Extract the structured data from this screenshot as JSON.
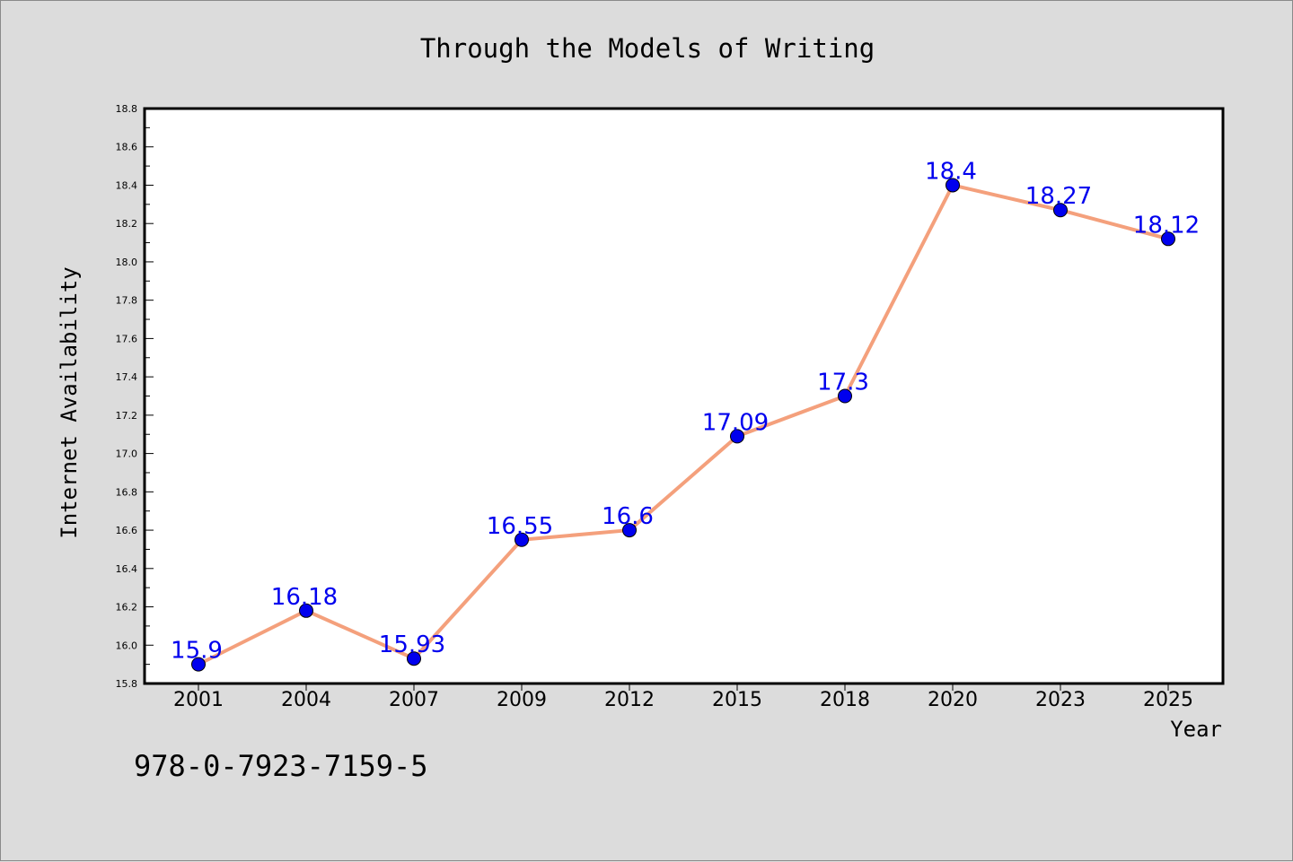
{
  "chart_data": {
    "type": "line",
    "title": "Through the Models of Writing",
    "xlabel": "Year",
    "ylabel": "Internet Availability",
    "categories": [
      "2001",
      "2004",
      "2007",
      "2009",
      "2012",
      "2015",
      "2018",
      "2020",
      "2023",
      "2025"
    ],
    "series": [
      {
        "values": [
          15.9,
          16.18,
          15.93,
          16.55,
          16.6,
          17.09,
          17.3,
          18.4,
          18.27,
          18.12
        ],
        "data_labels": [
          "15.9",
          "16.18",
          "15.93",
          "16.55",
          "16.6",
          "17.09",
          "17.3",
          "18.4",
          "18.27",
          "18.12"
        ],
        "line_color": "#f4a07c",
        "marker_color": "#0000ee",
        "label_color": "#0000ee"
      }
    ],
    "ylim": [
      15.8,
      18.8
    ],
    "yticks": [
      "15.8",
      "16.0",
      "16.2",
      "16.4",
      "16.6",
      "16.8",
      "17.0",
      "17.2",
      "17.4",
      "17.6",
      "17.8",
      "18.0",
      "18.2",
      "18.4",
      "18.6",
      "18.8"
    ],
    "grid": false,
    "legend": "none"
  },
  "footer": {
    "isbn": "978-0-7923-7159-5"
  },
  "colors": {
    "background": "#dcdcdc",
    "plot_area": "#ffffff",
    "axis": "#000000"
  }
}
